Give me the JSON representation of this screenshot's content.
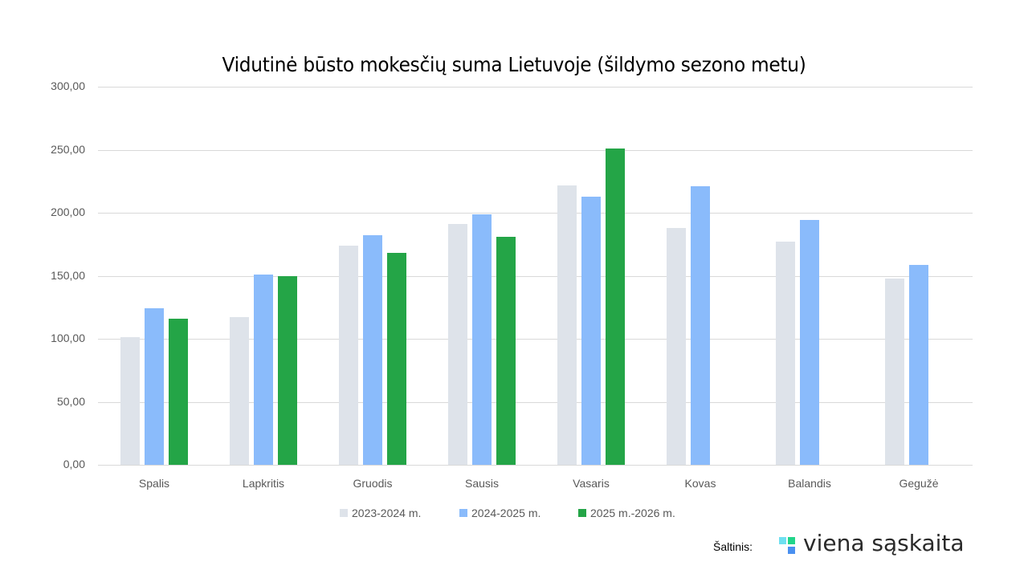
{
  "chart_data": {
    "type": "bar",
    "title": "Vidutinė būsto mokesčių suma Lietuvoje (šildymo sezono metu)",
    "xlabel": "",
    "ylabel": "",
    "ylim": [
      0,
      300
    ],
    "yticks": [
      "0,00",
      "50,00",
      "100,00",
      "150,00",
      "200,00",
      "250,00",
      "300,00"
    ],
    "ytick_values": [
      0,
      50,
      100,
      150,
      200,
      250,
      300
    ],
    "grid": true,
    "legend_position": "bottom",
    "categories": [
      "Spalis",
      "Lapkritis",
      "Gruodis",
      "Sausis",
      "Vasaris",
      "Kovas",
      "Balandis",
      "Gegužė"
    ],
    "series": [
      {
        "name": "2023-2024 m.",
        "color": "#dee3ea",
        "values": [
          101,
          117,
          174,
          191,
          221.5,
          188,
          177,
          148
        ]
      },
      {
        "name": "2024-2025 m.",
        "color": "#8abbfb",
        "values": [
          124.5,
          151,
          182,
          199,
          212.5,
          221,
          194,
          158.5
        ]
      },
      {
        "name": "2025 m.-2026 m.",
        "color": "#24a547",
        "values": [
          116,
          150,
          168,
          181,
          251,
          null,
          null,
          null
        ]
      }
    ]
  },
  "footer": {
    "source_label": "Šaltinis:",
    "brand_name": "viena sąskaita",
    "logo_colors": [
      "#6fe0f0",
      "#22d58a",
      "#4a90f0"
    ]
  }
}
